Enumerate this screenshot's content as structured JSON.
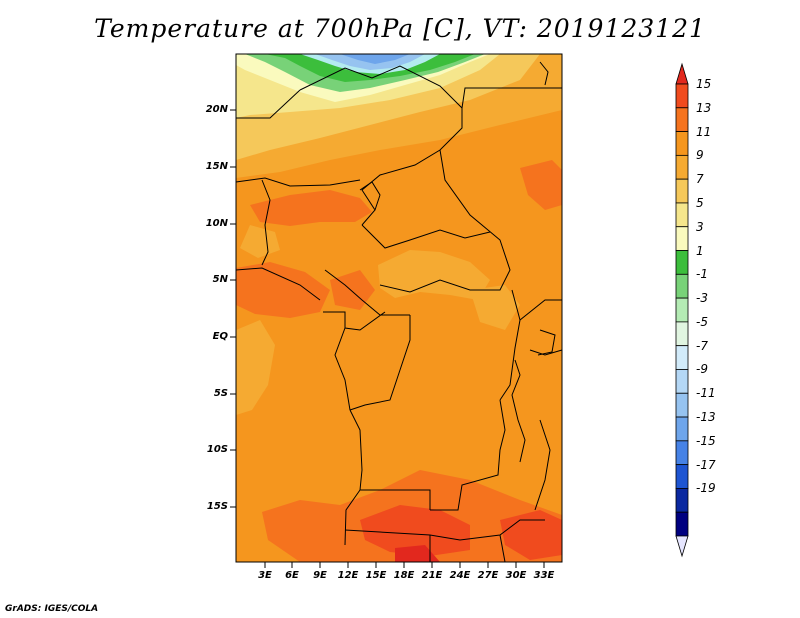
{
  "title": "Temperature at 700hPa [C], VT: 2019123121",
  "credit": "GrADS: IGES/COLA",
  "lat_labels": [
    "20N",
    "15N",
    "10N",
    "5N",
    "EQ",
    "5S",
    "10S",
    "15S"
  ],
  "lon_labels": [
    "3E",
    "6E",
    "9E",
    "12E",
    "15E",
    "18E",
    "21E",
    "24E",
    "27E",
    "30E",
    "33E"
  ],
  "colorbar": {
    "labels": [
      "15",
      "13",
      "11",
      "9",
      "7",
      "5",
      "3",
      "1",
      "-1",
      "-3",
      "-5",
      "-7",
      "-9",
      "-11",
      "-13",
      "-15",
      "-17",
      "-19"
    ],
    "colors": [
      "#e2281e",
      "#f04b1e",
      "#f5731e",
      "#f5961e",
      "#f5aa32",
      "#f5c85a",
      "#f5e68c",
      "#fafabe",
      "#3cbe3c",
      "#78d278",
      "#b4ebb4",
      "#e1f5e1",
      "#d2ebfa",
      "#b4d7f5",
      "#96c3f0",
      "#6ea5eb",
      "#4682e6",
      "#1e55d2",
      "#0a28a0",
      "#000080",
      "#e6e6ff"
    ]
  },
  "field_colors": {
    "base": "#f5961e",
    "warm": "#f5731e",
    "hot": "#f04b1e",
    "light": "#f5aa32",
    "pale": "#f5c85a",
    "cream": "#f5e68c",
    "green": "#3cbe3c",
    "lightgreen": "#78d278",
    "cyan": "#b4ebf0",
    "blue": "#96c3f0"
  }
}
